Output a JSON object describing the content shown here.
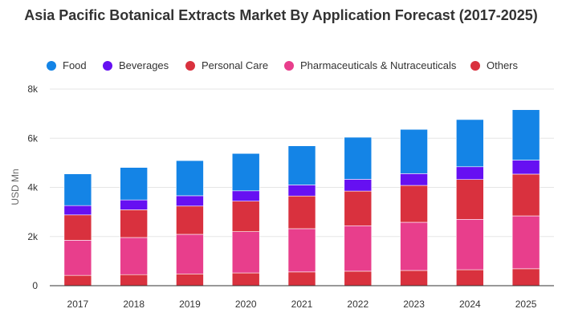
{
  "chart_data": {
    "type": "bar",
    "stacked": true,
    "title": "Asia Pacific Botanical Extracts Market By Application Forecast (2017-2025)",
    "ylabel": "USD Mn",
    "xlabel": "",
    "ylim": [
      0,
      8000
    ],
    "yticks": [
      "0",
      "2k",
      "4k",
      "6k",
      "8k"
    ],
    "categories": [
      "2017",
      "2018",
      "2019",
      "2020",
      "2021",
      "2022",
      "2023",
      "2024",
      "2025"
    ],
    "grid": true,
    "legend_position": "top",
    "series": [
      {
        "name": "Others",
        "color": "#d9313e",
        "values": [
          420,
          450,
          480,
          520,
          560,
          590,
          620,
          650,
          690
        ]
      },
      {
        "name": "Pharmaceuticals & Nutraceuticals",
        "color": "#e83e8c",
        "values": [
          1430,
          1510,
          1610,
          1680,
          1760,
          1850,
          1960,
          2050,
          2150
        ]
      },
      {
        "name": "Personal Care",
        "color": "#d9313e",
        "values": [
          1030,
          1130,
          1150,
          1240,
          1330,
          1410,
          1500,
          1620,
          1700
        ]
      },
      {
        "name": "Beverages",
        "color": "#6610f2",
        "values": [
          380,
          400,
          420,
          420,
          450,
          480,
          480,
          520,
          570
        ]
      },
      {
        "name": "Food",
        "color": "#1484e6",
        "values": [
          1290,
          1320,
          1430,
          1520,
          1590,
          1710,
          1800,
          1920,
          2050
        ]
      }
    ],
    "legend": [
      {
        "name": "Food",
        "color": "#1484e6"
      },
      {
        "name": "Beverages",
        "color": "#6610f2"
      },
      {
        "name": "Personal Care",
        "color": "#d9313e"
      },
      {
        "name": "Pharmaceuticals & Nutraceuticals",
        "color": "#e83e8c"
      },
      {
        "name": "Others",
        "color": "#d9313e"
      }
    ]
  }
}
